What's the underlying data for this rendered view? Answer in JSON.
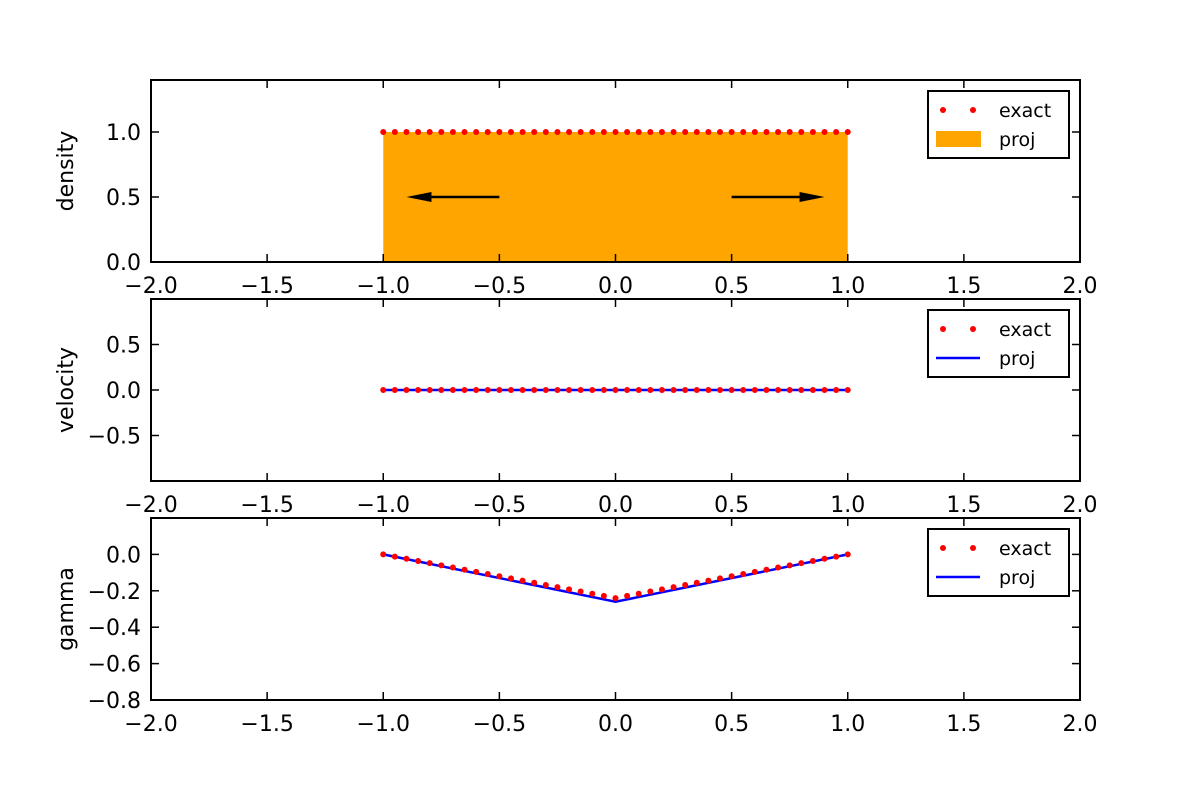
{
  "chart_data": [
    {
      "type": "area",
      "ylabel": "density",
      "xlim": [
        -2.0,
        2.0
      ],
      "ylim": [
        0.0,
        1.4
      ],
      "xticks": [
        -2.0,
        -1.5,
        -1.0,
        -0.5,
        0.0,
        0.5,
        1.0,
        1.5,
        2.0
      ],
      "xtick_labels": [
        "−2.0",
        "−1.5",
        "−1.0",
        "−0.5",
        "0.0",
        "0.5",
        "1.0",
        "1.5",
        "2.0"
      ],
      "yticks": [
        0.0,
        0.5,
        1.0
      ],
      "ytick_labels": [
        "0.0",
        "0.5",
        "1.0"
      ],
      "legend_position": "upper right",
      "series": [
        {
          "name": "exact",
          "kind": "dots",
          "color": "#ff0000",
          "x_range": [
            -1.0,
            1.0
          ],
          "count": 41,
          "y_constant": 1.0
        },
        {
          "name": "proj",
          "kind": "fill",
          "color": "#ffa500",
          "x": [
            -1.0,
            1.0
          ],
          "y": [
            1.0,
            1.0
          ]
        }
      ],
      "arrows": [
        {
          "from": [
            -0.5,
            0.5
          ],
          "to": [
            -0.9,
            0.5
          ]
        },
        {
          "from": [
            0.5,
            0.5
          ],
          "to": [
            0.9,
            0.5
          ]
        }
      ]
    },
    {
      "type": "line",
      "ylabel": "velocity",
      "xlim": [
        -2.0,
        2.0
      ],
      "ylim": [
        -1.0,
        1.0
      ],
      "xticks": [
        -2.0,
        -1.5,
        -1.0,
        -0.5,
        0.0,
        0.5,
        1.0,
        1.5,
        2.0
      ],
      "xtick_labels": [
        "−2.0",
        "−1.5",
        "−1.0",
        "−0.5",
        "0.0",
        "0.5",
        "1.0",
        "1.5",
        "2.0"
      ],
      "yticks": [
        -0.5,
        0.0,
        0.5
      ],
      "ytick_labels": [
        "−0.5",
        "0.0",
        "0.5"
      ],
      "legend_position": "upper right",
      "series": [
        {
          "name": "exact",
          "kind": "dots",
          "color": "#ff0000",
          "x_range": [
            -1.0,
            1.0
          ],
          "count": 41,
          "y_constant": 0.0
        },
        {
          "name": "proj",
          "kind": "line",
          "color": "#0000ff",
          "x": [
            -1.0,
            1.0
          ],
          "y": [
            0.0,
            0.0
          ]
        }
      ]
    },
    {
      "type": "line",
      "ylabel": "gamma",
      "xlim": [
        -2.0,
        2.0
      ],
      "ylim": [
        -0.8,
        0.2
      ],
      "xticks": [
        -2.0,
        -1.5,
        -1.0,
        -0.5,
        0.0,
        0.5,
        1.0,
        1.5,
        2.0
      ],
      "xtick_labels": [
        "−2.0",
        "−1.5",
        "−1.0",
        "−0.5",
        "0.0",
        "0.5",
        "1.0",
        "1.5",
        "2.0"
      ],
      "yticks": [
        -0.8,
        -0.6,
        -0.4,
        -0.2,
        0.0
      ],
      "ytick_labels": [
        "−0.8",
        "−0.6",
        "−0.4",
        "−0.2",
        "0.0"
      ],
      "legend_position": "upper right",
      "series": [
        {
          "name": "exact",
          "kind": "dots",
          "color": "#ff0000",
          "x_range": [
            -1.0,
            1.0
          ],
          "count": 41,
          "y_vee": {
            "edge": 0.0,
            "center": -0.24
          }
        },
        {
          "name": "proj",
          "kind": "line",
          "color": "#0000ff",
          "x": [
            -1.0,
            0.0,
            1.0
          ],
          "y": [
            0.0,
            -0.26,
            0.0
          ]
        }
      ]
    }
  ]
}
